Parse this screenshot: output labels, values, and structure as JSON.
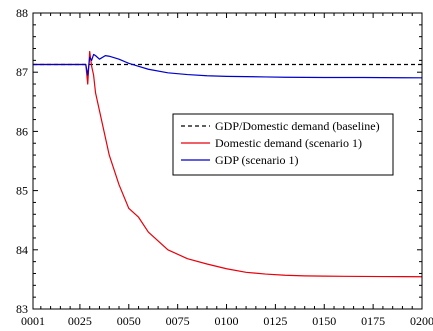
{
  "chart_data": {
    "type": "line",
    "title": "",
    "xlabel": "",
    "ylabel": "",
    "x_tick_labels": [
      "0001",
      "0025",
      "0050",
      "0075",
      "0100",
      "0125",
      "0150",
      "0175",
      "0200"
    ],
    "x_tick_values": [
      1,
      25,
      50,
      75,
      100,
      125,
      150,
      175,
      200
    ],
    "xlim": [
      1,
      200
    ],
    "ylim": [
      83,
      88
    ],
    "y_ticks": [
      83,
      84,
      85,
      86,
      87,
      88
    ],
    "grid": false,
    "legend_position": "center-right",
    "series": [
      {
        "name": "GDP/Domestic demand (baseline)",
        "color": "#000000",
        "dash": "dashed",
        "x": [
          1,
          200
        ],
        "y": [
          87.13,
          87.13
        ]
      },
      {
        "name": "Domestic demand (scenario 1)",
        "color": "#e8000b",
        "dash": "solid",
        "x": [
          1,
          28,
          29,
          30,
          31,
          32,
          33,
          35,
          40,
          45,
          50,
          55,
          60,
          70,
          80,
          90,
          100,
          110,
          120,
          130,
          140,
          150,
          160,
          170,
          180,
          190,
          200
        ],
        "y": [
          87.13,
          87.13,
          86.8,
          87.35,
          87.1,
          86.95,
          86.65,
          86.35,
          85.6,
          85.1,
          84.7,
          84.55,
          84.3,
          84.0,
          83.85,
          83.76,
          83.68,
          83.62,
          83.59,
          83.57,
          83.56,
          83.555,
          83.552,
          83.55,
          83.548,
          83.547,
          83.545
        ]
      },
      {
        "name": "GDP (scenario 1)",
        "color": "#0000cc",
        "dash": "solid",
        "x": [
          1,
          28,
          29,
          30,
          31,
          32,
          33,
          35,
          38,
          40,
          45,
          50,
          55,
          60,
          70,
          80,
          90,
          100,
          110,
          120,
          130,
          140,
          150,
          160,
          170,
          180,
          190,
          200
        ],
        "y": [
          87.13,
          87.13,
          86.95,
          87.25,
          87.2,
          87.3,
          87.28,
          87.22,
          87.28,
          87.27,
          87.22,
          87.15,
          87.1,
          87.05,
          86.99,
          86.96,
          86.94,
          86.93,
          86.925,
          86.92,
          86.915,
          86.912,
          86.91,
          86.91,
          86.91,
          86.908,
          86.906,
          86.905
        ]
      }
    ]
  }
}
